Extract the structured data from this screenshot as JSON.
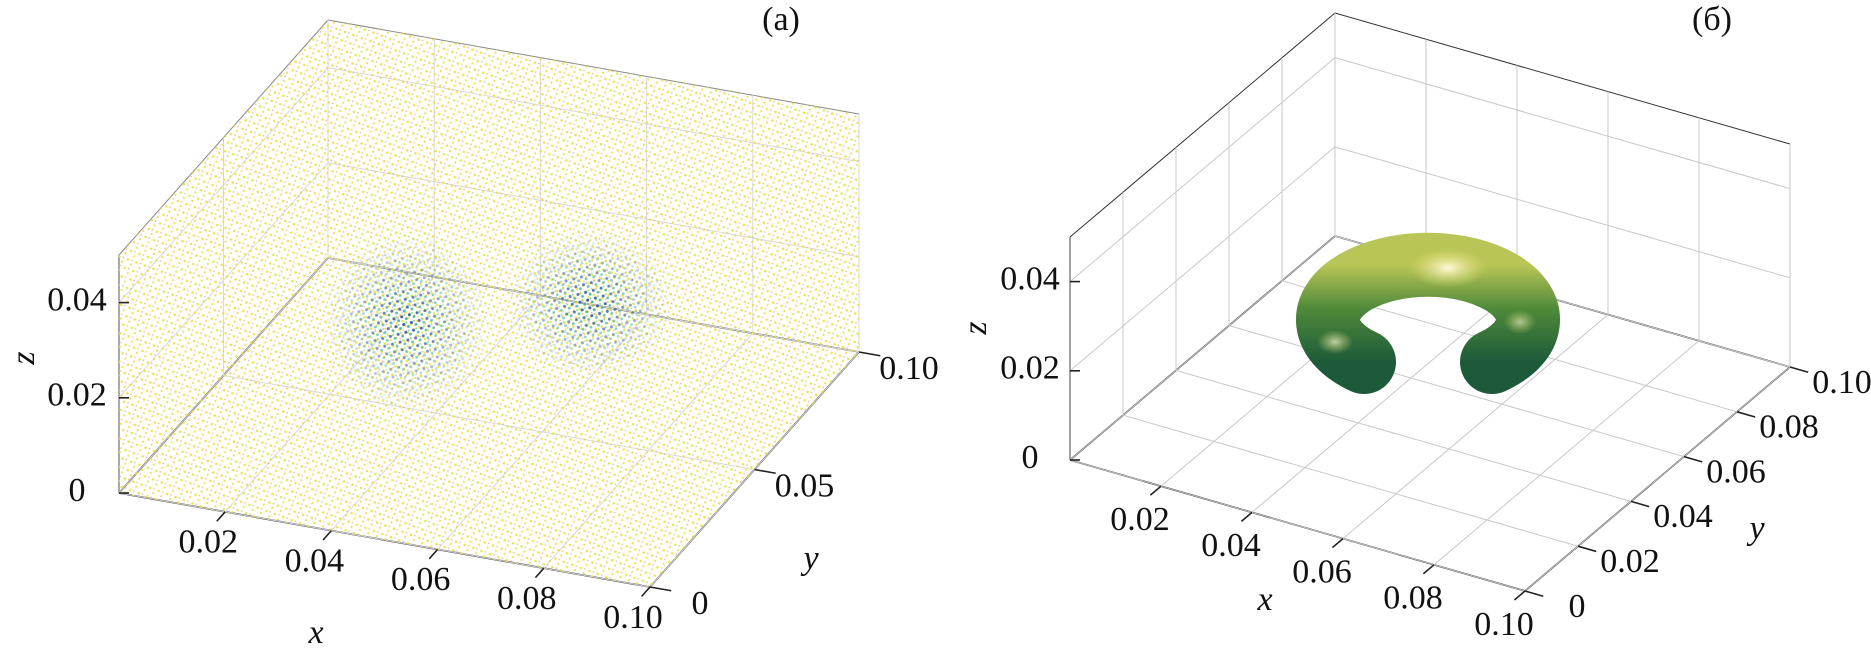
{
  "chart_data": [
    {
      "type": "scatter3d",
      "panel_label": "(a)",
      "xlabel": "x",
      "ylabel": "y",
      "zlabel": "z",
      "xlim": [
        0,
        0.1
      ],
      "ylim": [
        0,
        0.1
      ],
      "zlim": [
        0,
        0.05
      ],
      "xticks": [
        0.02,
        0.04,
        0.06,
        0.08,
        {
          "value": 0.1,
          "label": "0.10"
        }
      ],
      "yticks": [
        0,
        0.05,
        {
          "value": 0.1,
          "label": "0.10"
        }
      ],
      "zticks": [
        0,
        0.02,
        0.04
      ],
      "grid": true
    },
    {
      "type": "surface3d",
      "panel_label": "(б)",
      "xlabel": "x",
      "ylabel": "y",
      "zlabel": "z",
      "xlim": [
        0,
        0.1
      ],
      "ylim": [
        0,
        0.1
      ],
      "zlim": [
        0,
        0.05
      ],
      "xticks": [
        0.02,
        0.04,
        0.06,
        0.08,
        {
          "value": 0.1,
          "label": "0.10"
        }
      ],
      "yticks": [
        0,
        0.02,
        0.04,
        0.06,
        0.08,
        {
          "value": 0.1,
          "label": "0.10"
        }
      ],
      "zticks": [
        0,
        0.02,
        0.04
      ],
      "grid": true
    }
  ]
}
